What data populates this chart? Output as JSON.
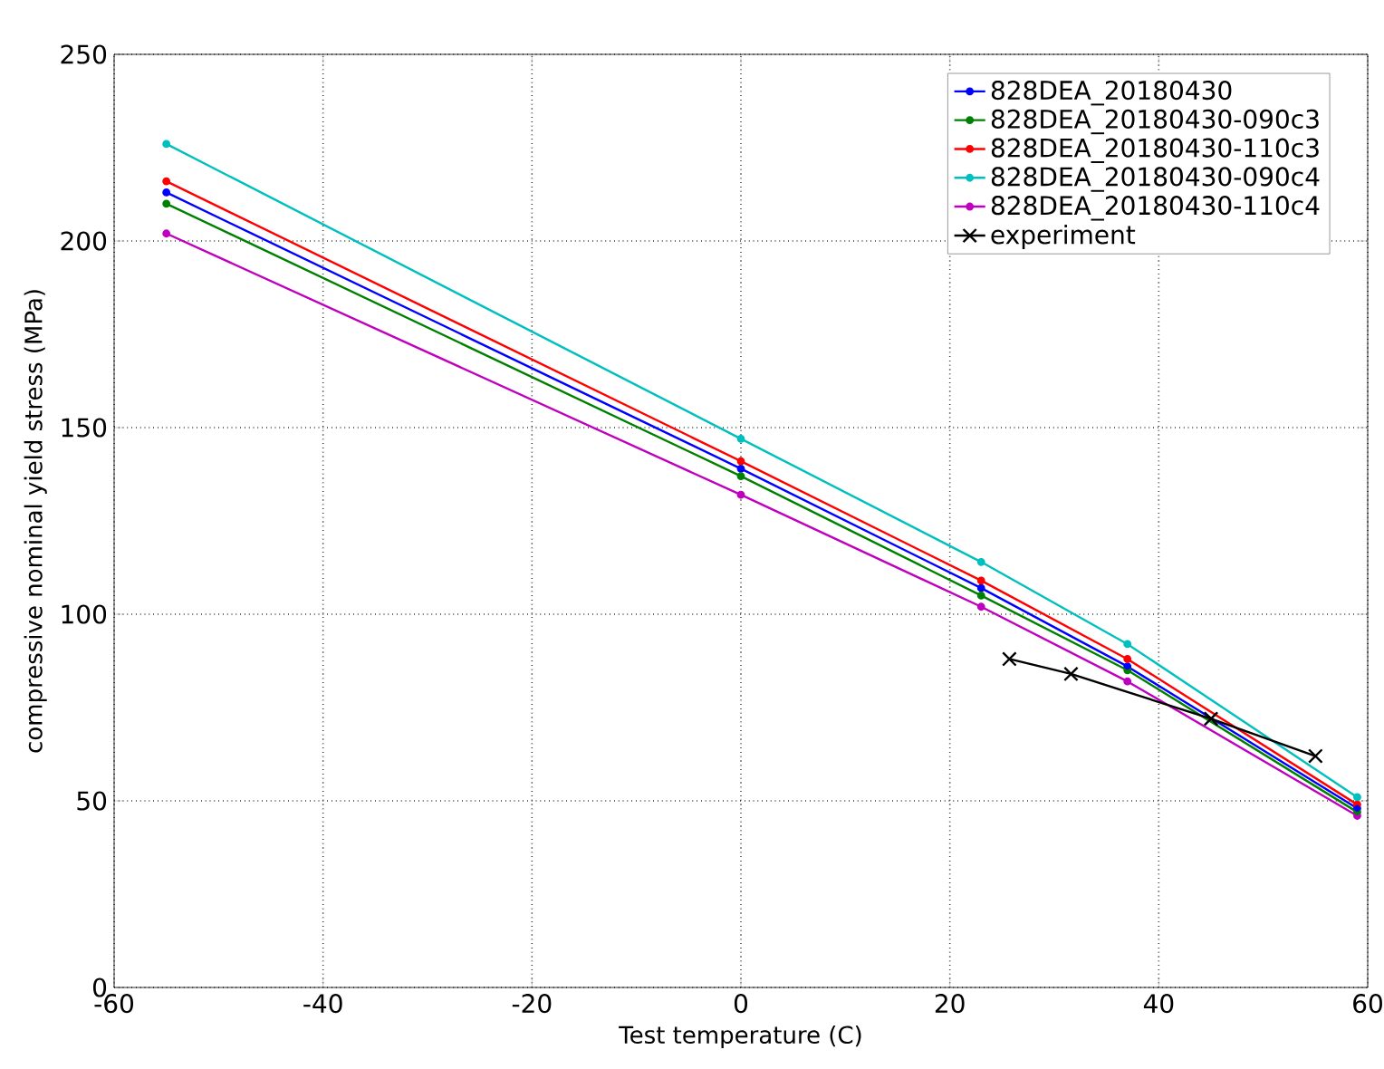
{
  "chart_data": {
    "type": "line",
    "xlabel": "Test temperature (C)",
    "ylabel": "compressive nominal yield stress (MPa)",
    "xlim": [
      -60,
      60
    ],
    "ylim": [
      0,
      250
    ],
    "xticks": [
      -60,
      -40,
      -20,
      0,
      20,
      40,
      60
    ],
    "yticks": [
      0,
      50,
      100,
      150,
      200,
      250
    ],
    "grid": true,
    "legend": "top right",
    "x": [
      -55,
      0,
      23,
      37,
      59
    ],
    "series": [
      {
        "name": "828DEA_20180430",
        "color": "#0000ff",
        "marker": "circle",
        "values": [
          213,
          139,
          107,
          86,
          48
        ]
      },
      {
        "name": "828DEA_20180430-090c3",
        "color": "#008000",
        "marker": "circle",
        "values": [
          210,
          137,
          105,
          85,
          47
        ]
      },
      {
        "name": "828DEA_20180430-110c3",
        "color": "#ff0000",
        "marker": "circle",
        "values": [
          216,
          141,
          109,
          88,
          49
        ]
      },
      {
        "name": "828DEA_20180430-090c4",
        "color": "#00bfbf",
        "marker": "circle",
        "values": [
          226,
          147,
          114,
          92,
          51
        ]
      },
      {
        "name": "828DEA_20180430-110c4",
        "color": "#bf00bf",
        "marker": "circle",
        "values": [
          202,
          132,
          102,
          82,
          46
        ]
      },
      {
        "name": "experiment",
        "color": "#000000",
        "marker": "cross",
        "x": [
          25.7,
          31.6,
          45,
          55
        ],
        "values": [
          88,
          84,
          72,
          62
        ]
      }
    ]
  }
}
